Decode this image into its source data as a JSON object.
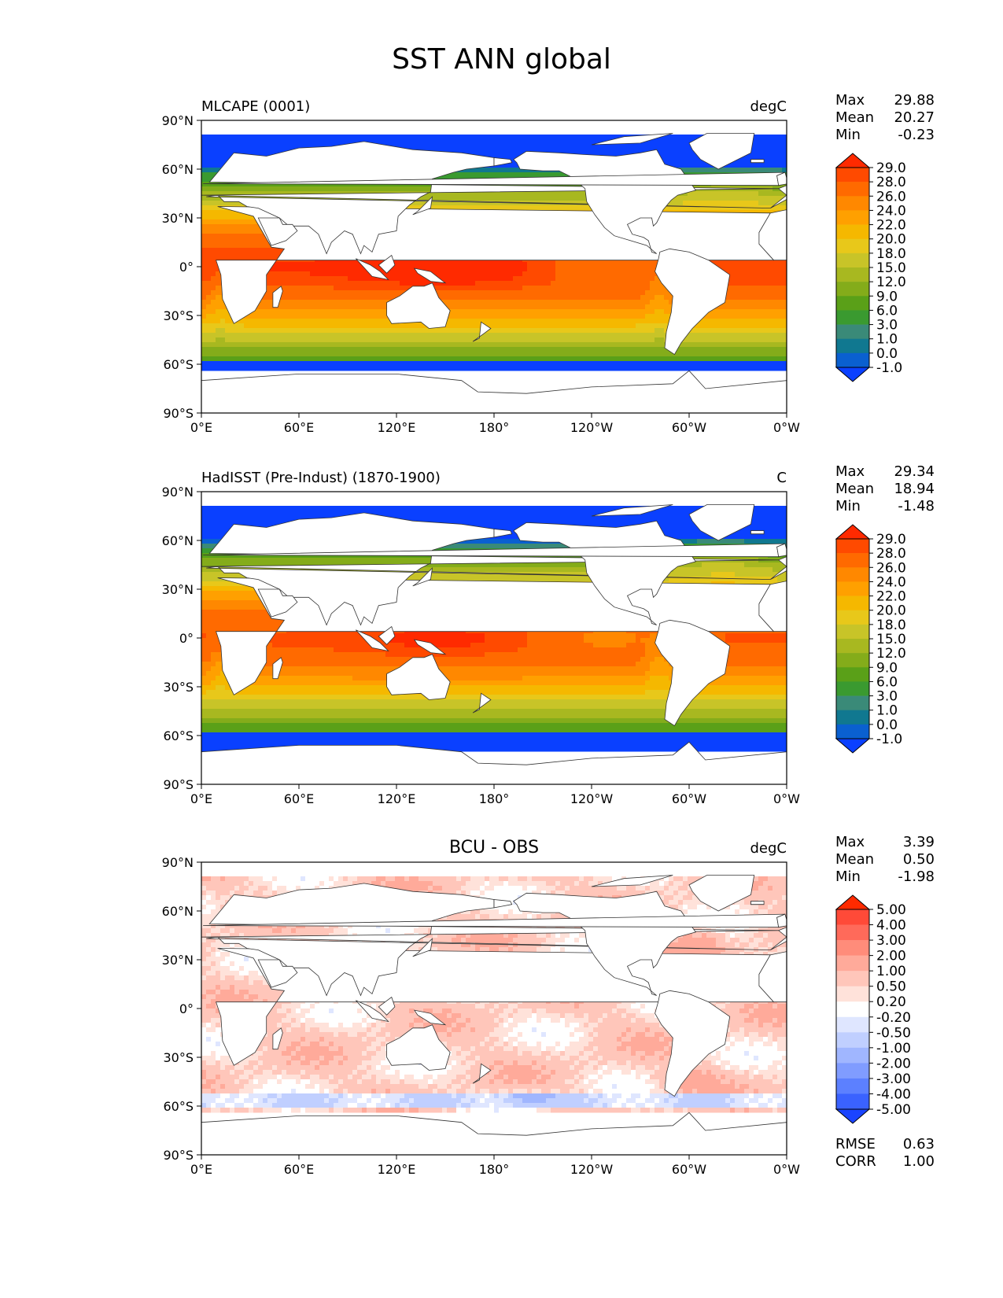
{
  "title": "SST ANN global",
  "axes": {
    "lat_ticks": [
      "90°N",
      "60°N",
      "30°N",
      "0°",
      "30°S",
      "60°S",
      "90°S"
    ],
    "lon_ticks": [
      "0°E",
      "60°E",
      "120°E",
      "180°",
      "120°W",
      "60°W",
      "0°W"
    ]
  },
  "panels": [
    {
      "name": "model",
      "left_title": "MLCAPE (0001)",
      "center_title": "",
      "units": "degC",
      "stats": [
        {
          "label": "Max",
          "value": "29.88"
        },
        {
          "label": "Mean",
          "value": "20.27"
        },
        {
          "label": "Min",
          "value": "-0.23"
        }
      ],
      "colorbar": {
        "levels": [
          "29.0",
          "28.0",
          "26.0",
          "24.0",
          "22.0",
          "20.0",
          "18.0",
          "15.0",
          "12.0",
          "9.0",
          "6.0",
          "3.0",
          "1.0",
          "0.0",
          "-1.0"
        ],
        "colors": [
          "#ff2a00",
          "#ff4a00",
          "#ff6a00",
          "#ff8800",
          "#ffa000",
          "#f5b800",
          "#e8c81a",
          "#c8c428",
          "#a8b820",
          "#84ac1a",
          "#5aa018",
          "#3a9a30",
          "#3a8a78",
          "#107890",
          "#0a60d0",
          "#0a40ff"
        ]
      },
      "extra_stats": []
    },
    {
      "name": "obs",
      "left_title": "HadISST (Pre-Indust) (1870-1900)",
      "center_title": "",
      "units": "C",
      "stats": [
        {
          "label": "Max",
          "value": "29.34"
        },
        {
          "label": "Mean",
          "value": "18.94"
        },
        {
          "label": "Min",
          "value": "-1.48"
        }
      ],
      "colorbar": {
        "levels": [
          "29.0",
          "28.0",
          "26.0",
          "24.0",
          "22.0",
          "20.0",
          "18.0",
          "15.0",
          "12.0",
          "9.0",
          "6.0",
          "3.0",
          "1.0",
          "0.0",
          "-1.0"
        ],
        "colors": [
          "#ff2a00",
          "#ff4a00",
          "#ff6a00",
          "#ff8800",
          "#ffa000",
          "#f5b800",
          "#e8c81a",
          "#c8c428",
          "#a8b820",
          "#84ac1a",
          "#5aa018",
          "#3a9a30",
          "#3a8a78",
          "#107890",
          "#0a60d0",
          "#0a40ff"
        ]
      },
      "extra_stats": []
    },
    {
      "name": "diff",
      "left_title": "",
      "center_title": "BCU - OBS",
      "units": "degC",
      "stats": [
        {
          "label": "Max",
          "value": "3.39"
        },
        {
          "label": "Mean",
          "value": "0.50"
        },
        {
          "label": "Min",
          "value": "-1.98"
        }
      ],
      "colorbar": {
        "levels": [
          "5.00",
          "4.00",
          "3.00",
          "2.00",
          "1.00",
          "0.50",
          "0.20",
          "-0.20",
          "-0.50",
          "-1.00",
          "-2.00",
          "-3.00",
          "-4.00",
          "-5.00"
        ],
        "colors": [
          "#ff2a00",
          "#ff4a38",
          "#ff6a5a",
          "#ff8c7a",
          "#ffaa9a",
          "#ffc6ba",
          "#ffe2da",
          "#ffffff",
          "#dfe6ff",
          "#c0cfff",
          "#a0b6ff",
          "#809cff",
          "#5c80ff",
          "#3a62ff",
          "#1a44ff"
        ]
      },
      "extra_stats": [
        {
          "label": "RMSE",
          "value": "0.63"
        },
        {
          "label": "CORR",
          "value": "1.00"
        }
      ]
    }
  ]
}
